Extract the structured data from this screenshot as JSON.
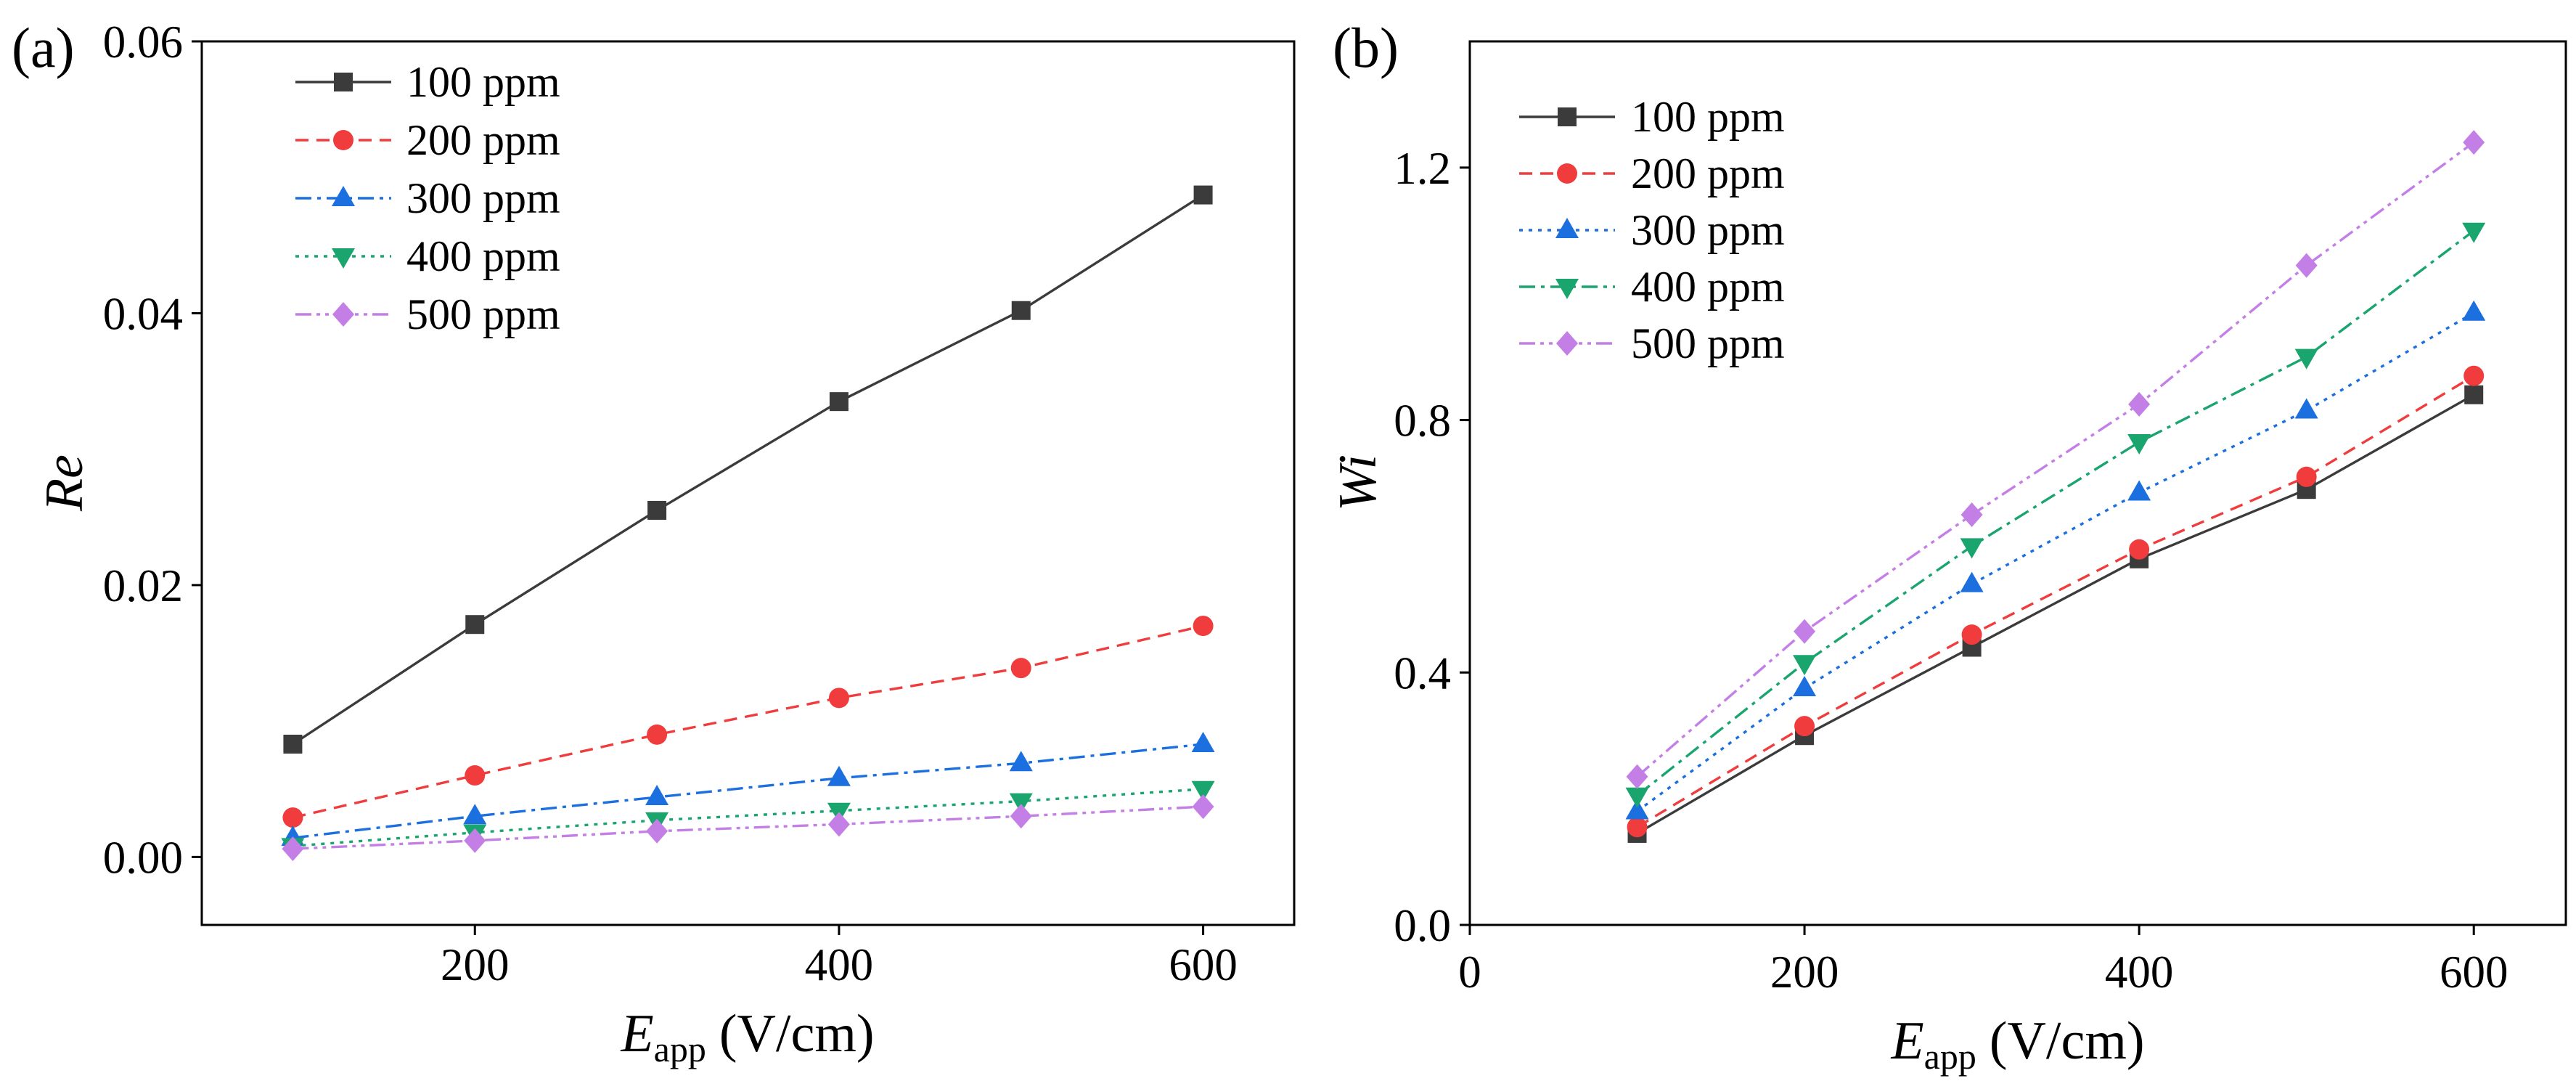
{
  "chart_data": [
    {
      "panel_label": "(a)",
      "type": "line",
      "xlabel": {
        "symbol": "E",
        "subscript": "app",
        "unit": "(V/cm)"
      },
      "ylabel": "Re",
      "xlim": [
        50,
        650
      ],
      "ylim": [
        -0.005,
        0.06
      ],
      "xticks": [
        200,
        400,
        600
      ],
      "xtick_labels": [
        "200",
        "400",
        "600"
      ],
      "yticks": [
        0,
        0.02,
        0.04,
        0.06
      ],
      "ytick_labels": [
        "0.00",
        "0.02",
        "0.04",
        "0.06"
      ],
      "grid": false,
      "legend_position": "top-left",
      "x": [
        100,
        200,
        300,
        400,
        500,
        600
      ],
      "series": [
        {
          "name": "100 ppm",
          "color": "#3b3b3b",
          "marker": "square",
          "line_style": "solid",
          "values": [
            0.0083,
            0.0171,
            0.0255,
            0.0335,
            0.0402,
            0.0487
          ]
        },
        {
          "name": "200 ppm",
          "color": "#f03c3c",
          "marker": "circle",
          "line_style": "dashed",
          "values": [
            0.0029,
            0.006,
            0.009,
            0.0117,
            0.0139,
            0.017
          ]
        },
        {
          "name": "300 ppm",
          "color": "#1b6fdf",
          "marker": "triangle-up",
          "line_style": "dashdot",
          "values": [
            0.0014,
            0.003,
            0.0044,
            0.0058,
            0.0069,
            0.0083
          ]
        },
        {
          "name": "400 ppm",
          "color": "#1aa56e",
          "marker": "triangle-down",
          "line_style": "dotted",
          "values": [
            0.0008,
            0.0018,
            0.0027,
            0.0034,
            0.0041,
            0.005
          ]
        },
        {
          "name": "500 ppm",
          "color": "#c47fe6",
          "marker": "diamond",
          "line_style": "dashdotdot",
          "values": [
            0.0006,
            0.0012,
            0.0019,
            0.0024,
            0.003,
            0.0037
          ]
        }
      ]
    },
    {
      "panel_label": "(b)",
      "type": "line",
      "xlabel": {
        "symbol": "E",
        "subscript": "app",
        "unit": "(V/cm)"
      },
      "ylabel": "Wi",
      "xlim": [
        0,
        655
      ],
      "ylim": [
        0,
        1.4
      ],
      "xticks": [
        0,
        200,
        400,
        600
      ],
      "xtick_labels": [
        "0",
        "200",
        "400",
        "600"
      ],
      "yticks": [
        0,
        0.4,
        0.8,
        1.2
      ],
      "ytick_labels": [
        "0.0",
        "0.4",
        "0.8",
        "1.2"
      ],
      "grid": false,
      "legend_position": "top-left",
      "x": [
        100,
        200,
        300,
        400,
        500,
        600
      ],
      "series": [
        {
          "name": "100 ppm",
          "color": "#3b3b3b",
          "marker": "square",
          "line_style": "solid",
          "values": [
            0.145,
            0.3,
            0.44,
            0.58,
            0.69,
            0.84
          ]
        },
        {
          "name": "200 ppm",
          "color": "#f03c3c",
          "marker": "circle",
          "line_style": "dashed",
          "values": [
            0.155,
            0.315,
            0.46,
            0.595,
            0.71,
            0.87
          ]
        },
        {
          "name": "300 ppm",
          "color": "#1b6fdf",
          "marker": "triangle-up",
          "line_style": "dotted",
          "values": [
            0.18,
            0.375,
            0.54,
            0.685,
            0.815,
            0.97
          ]
        },
        {
          "name": "400 ppm",
          "color": "#1aa56e",
          "marker": "triangle-down",
          "line_style": "dashdot",
          "values": [
            0.205,
            0.415,
            0.6,
            0.765,
            0.9,
            1.1
          ]
        },
        {
          "name": "500 ppm",
          "color": "#c47fe6",
          "marker": "diamond",
          "line_style": "dashdotdot",
          "values": [
            0.235,
            0.465,
            0.65,
            0.825,
            1.045,
            1.24
          ]
        }
      ]
    }
  ]
}
